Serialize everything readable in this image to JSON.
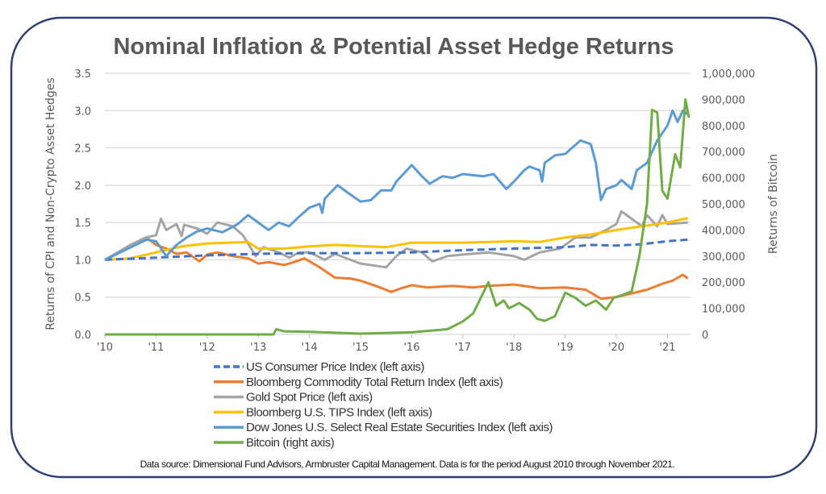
{
  "chart_data": {
    "type": "line",
    "title": "Nominal Inflation & Potential Asset Hedge Returns",
    "ylabel": "Returns of CPI and Non-Crypto Asset Hedges",
    "y2label": "Returns of Bitcoin",
    "ylim": [
      0,
      3.5
    ],
    "y2lim": [
      0,
      1000000
    ],
    "xlim": [
      2010,
      2021.45
    ],
    "yticks": [
      "0.0",
      "0.5",
      "1.0",
      "1.5",
      "2.0",
      "2.5",
      "3.0",
      "3.5"
    ],
    "y2ticks": [
      "0",
      "100,000",
      "200,000",
      "300,000",
      "400,000",
      "500,000",
      "600,000",
      "700,000",
      "800,000",
      "900,000",
      "1,000,000"
    ],
    "xticks": [
      "'10",
      "'11",
      "'12",
      "'13",
      "'14",
      "'15",
      "'16",
      "'17",
      "'18",
      "'19",
      "'20",
      "'21"
    ],
    "grid": true,
    "legend_position": "bottom",
    "series": [
      {
        "name": "US Consumer Price Index (left axis)",
        "axis": "left",
        "color": "#4472c4",
        "dash": true,
        "x": [
          2010,
          2011,
          2012,
          2013,
          2014,
          2015,
          2016,
          2017,
          2018,
          2019,
          2019.5,
          2020,
          2020.5,
          2021,
          2021.4
        ],
        "y": [
          1.0,
          1.03,
          1.06,
          1.08,
          1.09,
          1.09,
          1.1,
          1.13,
          1.15,
          1.17,
          1.2,
          1.19,
          1.21,
          1.25,
          1.27
        ]
      },
      {
        "name": "Bloomberg Commodity Total Return Index (left axis)",
        "axis": "left",
        "color": "#ed7d31",
        "x": [
          2010,
          2010.3,
          2010.6,
          2010.85,
          2011,
          2011.2,
          2011.4,
          2011.6,
          2011.85,
          2012,
          2012.2,
          2012.5,
          2012.8,
          2013,
          2013.2,
          2013.5,
          2013.7,
          2013.9,
          2014.2,
          2014.5,
          2014.8,
          2015,
          2015.3,
          2015.6,
          2015.8,
          2016,
          2016.3,
          2016.8,
          2017.2,
          2017.5,
          2018,
          2018.5,
          2019,
          2019.4,
          2019.7,
          2020,
          2020.3,
          2020.6,
          2020.9,
          2021.1,
          2021.3,
          2021.4
        ],
        "y": [
          1.0,
          1.1,
          1.2,
          1.28,
          1.2,
          1.15,
          1.08,
          1.1,
          0.98,
          1.07,
          1.1,
          1.05,
          1.02,
          0.95,
          0.97,
          0.93,
          0.97,
          1.02,
          0.9,
          0.76,
          0.75,
          0.72,
          0.65,
          0.57,
          0.62,
          0.66,
          0.63,
          0.65,
          0.63,
          0.65,
          0.67,
          0.62,
          0.63,
          0.6,
          0.48,
          0.5,
          0.55,
          0.6,
          0.68,
          0.72,
          0.8,
          0.75
        ]
      },
      {
        "name": "Gold Spot Price (left axis)",
        "axis": "left",
        "color": "#a5a5a5",
        "x": [
          2010,
          2010.3,
          2010.5,
          2010.8,
          2011,
          2011.1,
          2011.2,
          2011.4,
          2011.5,
          2011.55,
          2011.8,
          2012,
          2012.2,
          2012.5,
          2012.7,
          2012.95,
          2013.1,
          2013.4,
          2013.6,
          2013.8,
          2014,
          2014.3,
          2014.5,
          2014.8,
          2015,
          2015.3,
          2015.5,
          2015.7,
          2015.9,
          2016.2,
          2016.4,
          2016.7,
          2017,
          2017.5,
          2018,
          2018.2,
          2018.5,
          2018.9,
          2019.2,
          2019.5,
          2019.8,
          2020,
          2020.1,
          2020.3,
          2020.5,
          2020.6,
          2020.8,
          2020.9,
          2021,
          2021.4
        ],
        "y": [
          1.0,
          1.12,
          1.2,
          1.3,
          1.33,
          1.55,
          1.4,
          1.48,
          1.32,
          1.47,
          1.42,
          1.35,
          1.5,
          1.45,
          1.33,
          1.05,
          1.17,
          1.1,
          1.03,
          1.1,
          1.1,
          1.0,
          1.08,
          1.0,
          0.95,
          0.92,
          0.9,
          1.05,
          1.15,
          1.1,
          0.98,
          1.05,
          1.07,
          1.1,
          1.05,
          1.0,
          1.1,
          1.15,
          1.3,
          1.3,
          1.4,
          1.48,
          1.65,
          1.55,
          1.45,
          1.6,
          1.45,
          1.6,
          1.48,
          1.5
        ]
      },
      {
        "name": "Bloomberg U.S. TIPS Index (left axis)",
        "axis": "left",
        "color": "#ffc000",
        "x": [
          2010,
          2010.5,
          2011,
          2011.5,
          2012,
          2012.8,
          2013,
          2013.5,
          2014,
          2014.5,
          2015.5,
          2016,
          2017,
          2018,
          2018.5,
          2019,
          2019.5,
          2020,
          2020.5,
          2021,
          2021.4
        ],
        "y": [
          1.0,
          1.02,
          1.1,
          1.18,
          1.22,
          1.24,
          1.15,
          1.15,
          1.18,
          1.2,
          1.17,
          1.23,
          1.23,
          1.25,
          1.24,
          1.3,
          1.34,
          1.4,
          1.45,
          1.5,
          1.56
        ]
      },
      {
        "name": "Dow Jones U.S. Select Real Estate Securities Index   (left axis)",
        "axis": "left",
        "color": "#5b9bd5",
        "x": [
          2010,
          2010.3,
          2010.6,
          2010.8,
          2011,
          2011.2,
          2011.4,
          2011.6,
          2011.8,
          2012,
          2012.3,
          2012.6,
          2012.8,
          2013,
          2013.2,
          2013.4,
          2013.6,
          2013.8,
          2014,
          2014.2,
          2014.25,
          2014.3,
          2014.55,
          2014.75,
          2015,
          2015.2,
          2015.4,
          2015.6,
          2015.7,
          2016,
          2016.2,
          2016.35,
          2016.6,
          2016.8,
          2017,
          2017.4,
          2017.6,
          2017.85,
          2018,
          2018.2,
          2018.3,
          2018.5,
          2018.55,
          2018.6,
          2018.8,
          2019,
          2019.3,
          2019.5,
          2019.6,
          2019.7,
          2019.8,
          2020,
          2020.1,
          2020.3,
          2020.4,
          2020.6,
          2020.8,
          2021,
          2021.1,
          2021.2,
          2021.3,
          2021.4
        ],
        "y": [
          1.0,
          1.1,
          1.2,
          1.27,
          1.25,
          1.05,
          1.2,
          1.3,
          1.38,
          1.42,
          1.37,
          1.48,
          1.6,
          1.5,
          1.4,
          1.5,
          1.45,
          1.58,
          1.7,
          1.75,
          1.63,
          1.82,
          2.0,
          1.9,
          1.78,
          1.8,
          1.93,
          1.93,
          2.05,
          2.27,
          2.12,
          2.02,
          2.12,
          2.1,
          2.15,
          2.12,
          2.15,
          1.95,
          2.05,
          2.2,
          2.25,
          2.2,
          2.05,
          2.3,
          2.4,
          2.42,
          2.6,
          2.55,
          2.3,
          1.8,
          1.95,
          2.0,
          2.07,
          1.95,
          2.2,
          2.3,
          2.6,
          2.8,
          3.0,
          2.85,
          3.0,
          2.95
        ]
      },
      {
        "name": "Bitcoin (right axis)",
        "axis": "right",
        "color": "#70ad47",
        "x": [
          2010,
          2013.3,
          2013.35,
          2013.5,
          2014,
          2015,
          2016,
          2016.7,
          2017,
          2017.2,
          2017.5,
          2017.65,
          2017.8,
          2017.9,
          2018.1,
          2018.3,
          2018.45,
          2018.6,
          2018.8,
          2019,
          2019.2,
          2019.4,
          2019.6,
          2019.8,
          2019.95,
          2020.1,
          2020.3,
          2020.45,
          2020.6,
          2020.7,
          2020.8,
          2020.9,
          2021,
          2021.15,
          2021.25,
          2021.35,
          2021.42
        ],
        "y": [
          0,
          0,
          20000,
          12000,
          10000,
          3000,
          8000,
          20000,
          50000,
          80000,
          200000,
          110000,
          130000,
          100000,
          120000,
          95000,
          60000,
          52000,
          70000,
          160000,
          140000,
          110000,
          130000,
          95000,
          140000,
          150000,
          165000,
          300000,
          500000,
          860000,
          850000,
          550000,
          520000,
          690000,
          640000,
          900000,
          830000
        ]
      }
    ],
    "source_note": "Data source: Dimensional Fund Advisors, Armbruster Capital Management. Data is for the period August 2010 through November 2021."
  },
  "colors": {
    "frame": "#2f3f73",
    "grid": "#d9d9d9",
    "text": "#595959"
  }
}
